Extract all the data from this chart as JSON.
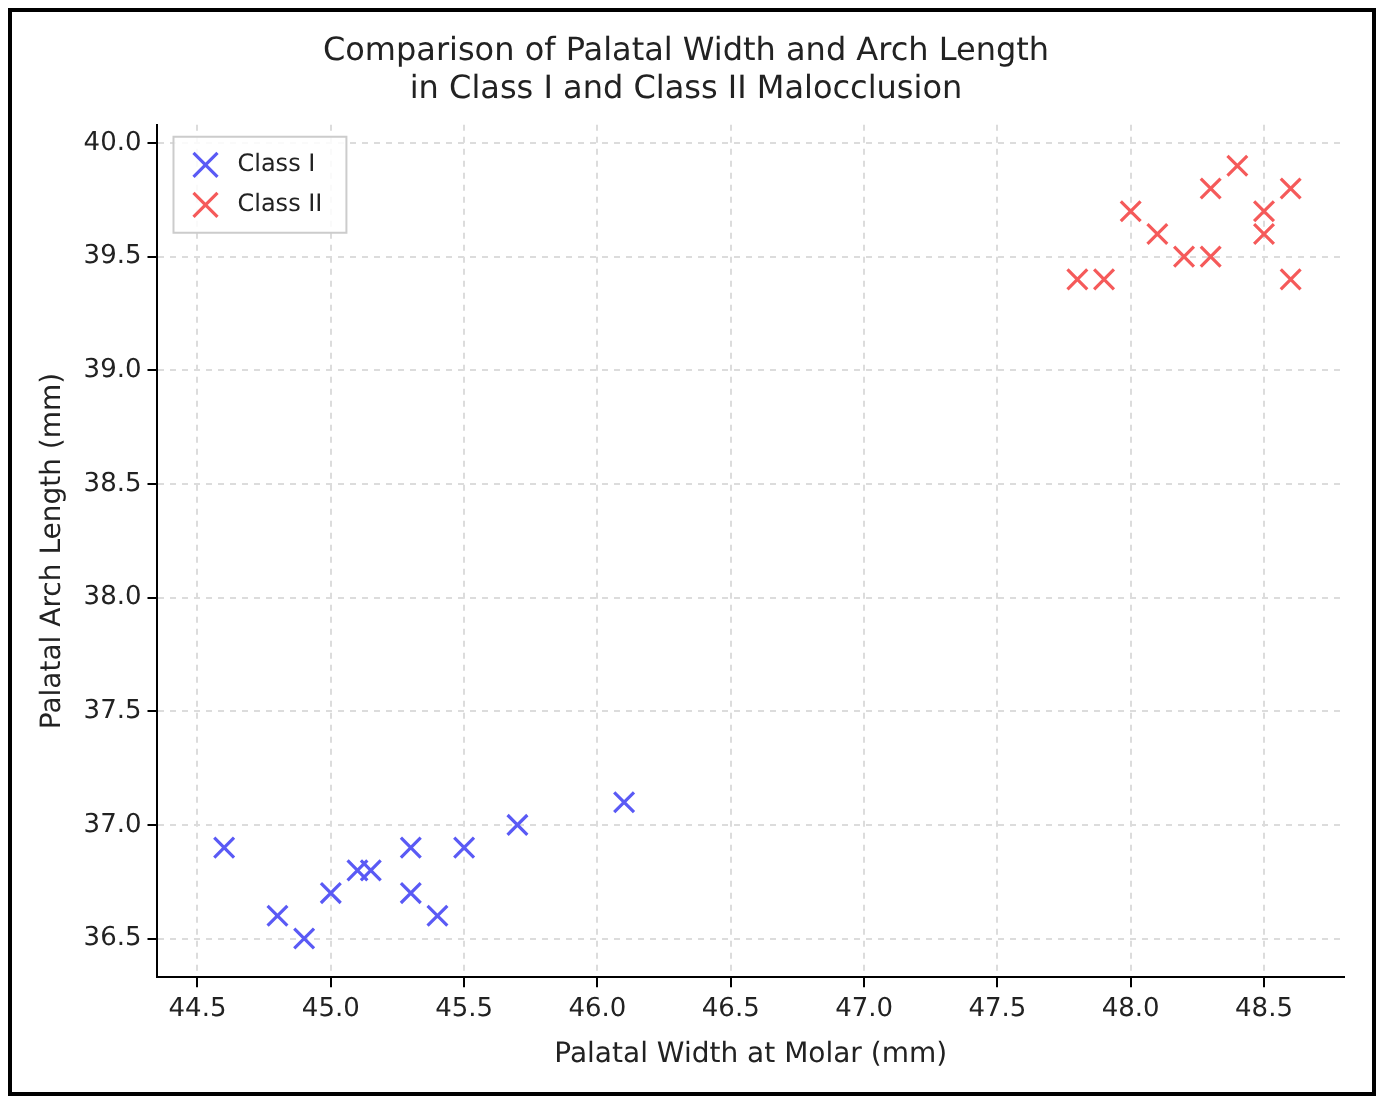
{
  "chart_data": {
    "type": "scatter",
    "title": "Comparison of Palatal Width and Arch Length\nin Class I and Class II Malocclusion",
    "xlabel": "Palatal Width at Molar (mm)",
    "ylabel": "Palatal Arch Length (mm)",
    "series": [
      {
        "name": "Class I",
        "color": "#5a5af5",
        "x": [
          44.6,
          44.8,
          44.9,
          45.0,
          45.1,
          45.15,
          45.3,
          45.3,
          45.4,
          45.5,
          45.7,
          46.1
        ],
        "values": [
          36.9,
          36.6,
          36.5,
          36.7,
          36.8,
          36.8,
          36.9,
          36.7,
          36.6,
          36.9,
          37.0,
          37.1
        ]
      },
      {
        "name": "Class II",
        "color": "#f55a5a",
        "x": [
          47.8,
          47.9,
          48.0,
          48.1,
          48.2,
          48.3,
          48.3,
          48.4,
          48.5,
          48.5,
          48.6,
          48.6
        ],
        "values": [
          39.4,
          39.4,
          39.7,
          39.6,
          39.5,
          39.5,
          39.8,
          39.9,
          39.7,
          39.6,
          39.8,
          39.4
        ]
      }
    ],
    "marker": "cross",
    "xlim": [
      44.35,
      48.8
    ],
    "ylim": [
      36.33,
      40.08
    ],
    "xticks": [
      {
        "value": 44.5,
        "label": "44.5"
      },
      {
        "value": 45,
        "label": "45.0"
      },
      {
        "value": 45.5,
        "label": "45.5"
      },
      {
        "value": 46,
        "label": "46.0"
      },
      {
        "value": 46.5,
        "label": "46.5"
      },
      {
        "value": 47,
        "label": "47.0"
      },
      {
        "value": 47.5,
        "label": "47.5"
      },
      {
        "value": 48,
        "label": "48.0"
      },
      {
        "value": 48.5,
        "label": "48.5"
      }
    ],
    "yticks": [
      {
        "value": 36.5,
        "label": "36.5"
      },
      {
        "value": 37,
        "label": "37.0"
      },
      {
        "value": 37.5,
        "label": "37.5"
      },
      {
        "value": 38,
        "label": "38.0"
      },
      {
        "value": 38.5,
        "label": "38.5"
      },
      {
        "value": 39,
        "label": "39.0"
      },
      {
        "value": 39.5,
        "label": "39.5"
      },
      {
        "value": 40,
        "label": "40.0"
      }
    ],
    "grid": true,
    "legend": "top left"
  }
}
